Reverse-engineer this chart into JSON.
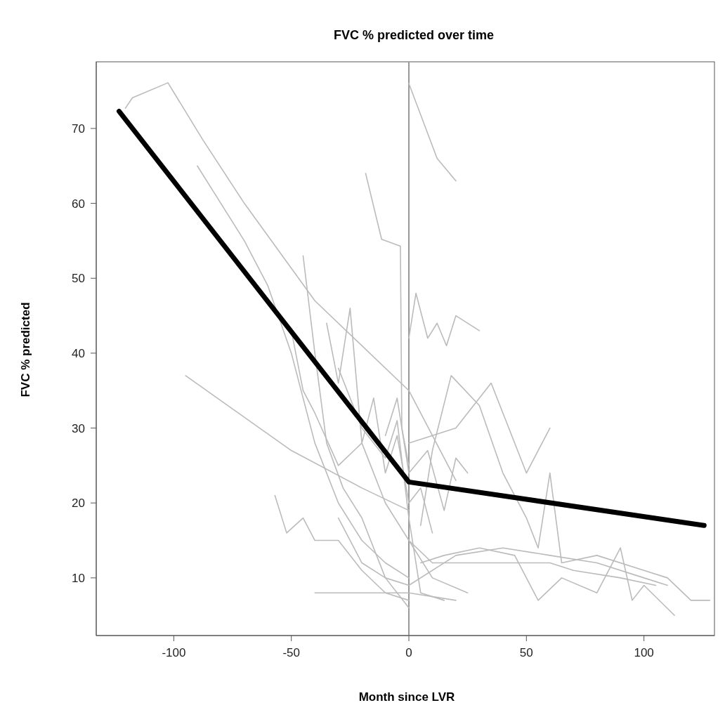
{
  "chart_data": {
    "type": "line",
    "title": "FVC % predicted over time",
    "xlabel": "Month since LVR",
    "ylabel": "FVC % predicted",
    "xlim": [
      -133,
      130
    ],
    "ylim": [
      2.3,
      78.9
    ],
    "xticks": [
      -100,
      -50,
      0,
      50,
      100
    ],
    "yticks": [
      10,
      20,
      30,
      40,
      50,
      60,
      70
    ],
    "marker": "none",
    "line_style": "solid",
    "ref_lines": [
      {
        "axis": "x",
        "value": 0,
        "color": "#999999"
      }
    ],
    "series": [
      {
        "color": "#bbbbbb",
        "x": [
          -120.6,
          -117.6,
          -102.5,
          -87.7,
          -70,
          -40,
          0,
          20
        ],
        "values": [
          72.7,
          74.1,
          76.1,
          68.5,
          60,
          47,
          35,
          23
        ]
      },
      {
        "color": "#bbbbbb",
        "x": [
          -90,
          -70,
          -60,
          -50,
          -40,
          -30,
          -20,
          -10,
          0
        ],
        "values": [
          65,
          55,
          49,
          40,
          28,
          20,
          15,
          12,
          10
        ]
      },
      {
        "color": "#bbbbbb",
        "x": [
          -95,
          -50,
          -20,
          0
        ],
        "values": [
          37,
          27,
          22,
          19
        ]
      },
      {
        "color": "#bbbbbb",
        "x": [
          0,
          12,
          20
        ],
        "values": [
          76,
          66,
          63
        ]
      },
      {
        "color": "#bbbbbb",
        "x": [
          -18.4,
          -11.6,
          -3.6,
          -3,
          0
        ],
        "values": [
          64,
          55.2,
          54.3,
          30,
          25
        ]
      },
      {
        "color": "#bbbbbb",
        "x": [
          0,
          3,
          8,
          12,
          16,
          20,
          30
        ],
        "values": [
          42,
          48,
          42,
          44,
          41,
          45,
          43
        ]
      },
      {
        "color": "#bbbbbb",
        "x": [
          -57,
          -52,
          -45,
          -40,
          -30,
          -20,
          -10,
          0
        ],
        "values": [
          21,
          16,
          18,
          15,
          15,
          11,
          8,
          7
        ]
      },
      {
        "color": "#bbbbbb",
        "x": [
          -40,
          0,
          20
        ],
        "values": [
          8,
          8,
          7
        ]
      },
      {
        "color": "#bbbbbb",
        "x": [
          -30,
          -20,
          -10,
          0,
          20,
          40,
          60,
          80,
          100,
          110
        ],
        "values": [
          18,
          12,
          10,
          9,
          13,
          14,
          13,
          12,
          10,
          9
        ]
      },
      {
        "color": "#bbbbbb",
        "x": [
          5,
          10,
          18,
          30,
          40,
          50,
          55,
          60,
          65,
          80,
          100,
          110,
          120,
          128
        ],
        "values": [
          17,
          27,
          37,
          33,
          24,
          18,
          14,
          24,
          12,
          13,
          11,
          10,
          7,
          7
        ]
      },
      {
        "color": "#bbbbbb",
        "x": [
          0,
          20,
          35,
          50,
          60
        ],
        "values": [
          28,
          30,
          36,
          24,
          30
        ]
      },
      {
        "color": "#bbbbbb",
        "x": [
          5,
          15,
          30,
          45,
          55,
          65,
          80,
          90,
          95,
          100,
          113
        ],
        "values": [
          12,
          13,
          14,
          13,
          7,
          10,
          8,
          14,
          7,
          9,
          5
        ]
      },
      {
        "color": "#bbbbbb",
        "x": [
          0,
          10,
          20,
          30,
          40,
          60,
          70,
          90,
          105
        ],
        "values": [
          15,
          12,
          12,
          12,
          12,
          12,
          11,
          10,
          9
        ]
      },
      {
        "color": "#bbbbbb",
        "x": [
          -45,
          -40,
          -35,
          -28,
          -20,
          -10,
          0
        ],
        "values": [
          53,
          40,
          28,
          22,
          18,
          10,
          6
        ]
      },
      {
        "color": "#bbbbbb",
        "x": [
          -35,
          -30,
          -25,
          -20,
          -15,
          -10,
          -5,
          0,
          5,
          10
        ],
        "values": [
          44,
          36,
          46,
          28,
          34,
          24,
          29,
          20,
          22,
          16
        ]
      },
      {
        "color": "#bbbbbb",
        "x": [
          -50,
          -45,
          -40,
          -30,
          -20,
          -10,
          0,
          10,
          25
        ],
        "values": [
          43,
          35,
          32,
          25,
          28,
          20,
          15,
          10,
          8
        ]
      },
      {
        "color": "#bbbbbb",
        "x": [
          -30,
          -20,
          -10,
          -5,
          0,
          5,
          15
        ],
        "values": [
          38,
          30,
          26,
          31,
          18,
          8,
          7
        ]
      },
      {
        "color": "#bbbbbb",
        "x": [
          -10,
          -5,
          0,
          8,
          15,
          20,
          25
        ],
        "values": [
          29,
          34,
          24,
          27,
          19,
          26,
          24
        ]
      },
      {
        "color": "#000000",
        "x": [
          -123.3,
          0,
          125.6
        ],
        "values": [
          72.3,
          22.8,
          17.0
        ]
      }
    ]
  }
}
